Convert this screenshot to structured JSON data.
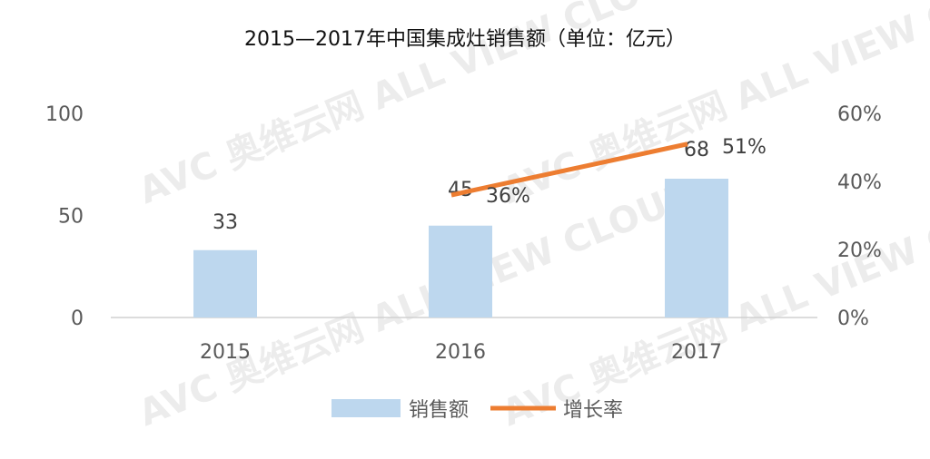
{
  "chart_data": {
    "type": "bar+line",
    "title": "2015—2017年中国集成灶销售额（单位：亿元）",
    "categories": [
      "2015",
      "2016",
      "2017"
    ],
    "series": [
      {
        "name": "销售额",
        "type": "bar",
        "axis": "left",
        "values": [
          33,
          45,
          68
        ],
        "labels": [
          "33",
          "45",
          "68"
        ],
        "color": "#bdd7ee"
      },
      {
        "name": "增长率",
        "type": "line",
        "axis": "right",
        "values": [
          null,
          36,
          51
        ],
        "labels": [
          "",
          "36%",
          "51%"
        ],
        "color": "#ed7d31"
      }
    ],
    "y_left": {
      "range": [
        0,
        100
      ],
      "ticks": [
        "0",
        "50",
        "100"
      ]
    },
    "y_right": {
      "range": [
        0,
        60
      ],
      "ticks": [
        "0%",
        "20%",
        "40%",
        "60%"
      ]
    },
    "grid": false,
    "legend": "bottom",
    "watermark": "AVC 奥维云网 ALL VIEW CLOUD"
  }
}
